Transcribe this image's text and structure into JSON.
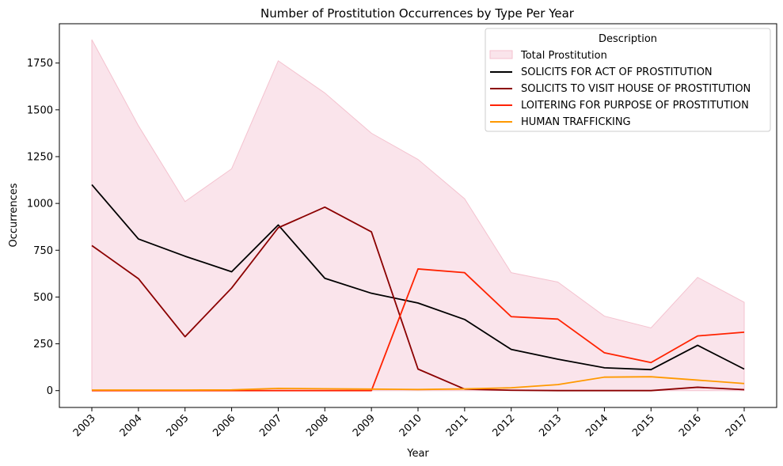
{
  "chart_data": {
    "type": "line",
    "title": "Number of Prostitution Occurrences by Type Per Year",
    "xlabel": "Year",
    "ylabel": "Occurrences",
    "x": [
      "2003",
      "2004",
      "2005",
      "2006",
      "2007",
      "2008",
      "2009",
      "2010",
      "2011",
      "2012",
      "2013",
      "2014",
      "2015",
      "2016",
      "2017"
    ],
    "ylim": [
      -90,
      1960
    ],
    "yticks": [
      0,
      250,
      500,
      750,
      1000,
      1250,
      1500,
      1750
    ],
    "ytick_labels": [
      "0",
      "250",
      "500",
      "750",
      "1000",
      "1250",
      "1500",
      "1750"
    ],
    "grid": false,
    "legend": {
      "title": "Description",
      "placement": "top-right"
    },
    "area": {
      "name": "Total Prostitution",
      "color": "#f8d6e0",
      "edge_color": "#f4c2cf",
      "values": [
        1875,
        1415,
        1010,
        1185,
        1762,
        1590,
        1375,
        1235,
        1025,
        630,
        580,
        398,
        335,
        605,
        472
      ]
    },
    "series": [
      {
        "name": "SOLICITS FOR ACT OF PROSTITUTION",
        "color": "#000000",
        "values": [
          1100,
          810,
          718,
          635,
          885,
          600,
          520,
          468,
          380,
          220,
          168,
          122,
          112,
          242,
          115
        ]
      },
      {
        "name": "SOLICITS TO VISIT HOUSE OF PROSTITUTION",
        "color": "#8b0000",
        "values": [
          775,
          598,
          288,
          548,
          870,
          980,
          848,
          115,
          8,
          2,
          0,
          0,
          0,
          18,
          5
        ]
      },
      {
        "name": "LOITERING FOR PURPOSE OF PROSTITUTION",
        "color": "#ff2200",
        "values": [
          0,
          0,
          0,
          0,
          0,
          0,
          0,
          650,
          630,
          395,
          382,
          202,
          150,
          292,
          312
        ]
      },
      {
        "name": "HUMAN TRAFFICKING",
        "color": "#ff9900",
        "values": [
          3,
          3,
          3,
          4,
          12,
          10,
          8,
          6,
          9,
          15,
          32,
          72,
          74,
          56,
          38
        ]
      }
    ]
  }
}
